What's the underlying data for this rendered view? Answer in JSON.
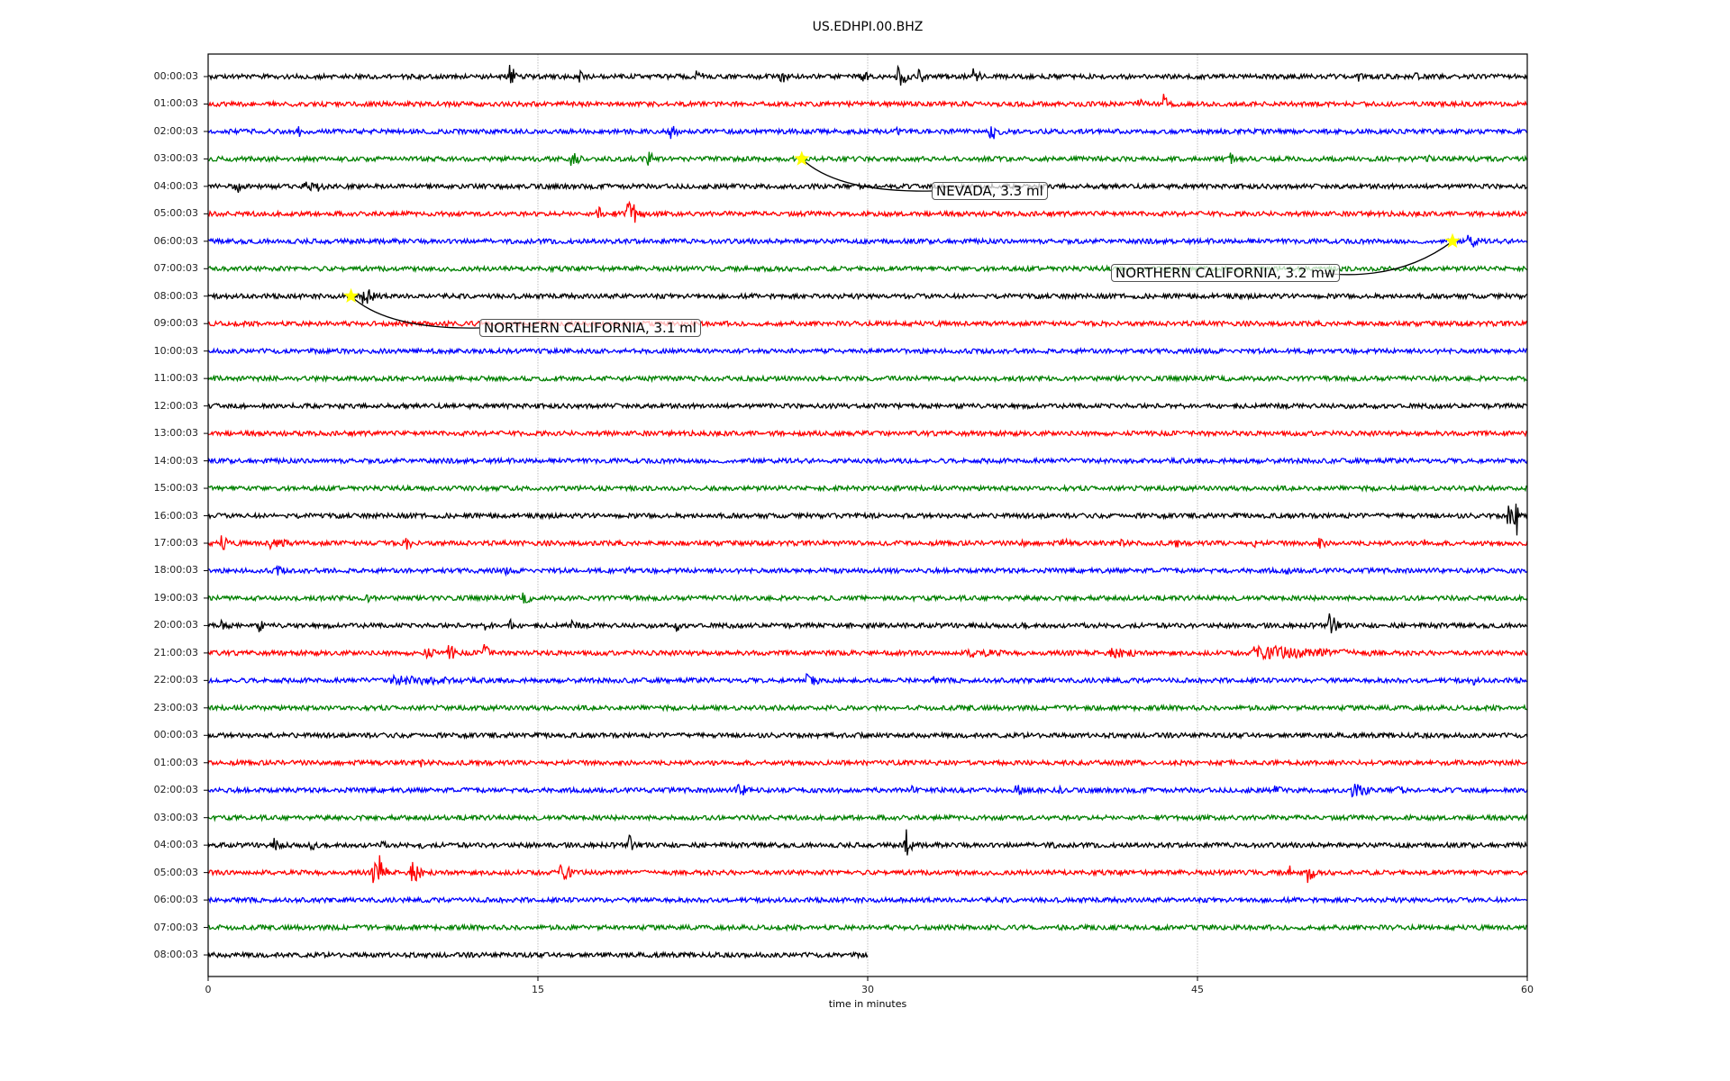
{
  "chart_data": {
    "type": "line",
    "title": "US.EDHPI.00.BHZ",
    "xlabel": "time in minutes",
    "ylabel": "",
    "xlim": [
      0,
      60
    ],
    "xticks": [
      "0",
      "15",
      "30",
      "45",
      "60"
    ],
    "grid": "vertical dotted at 15, 30, 45",
    "colors": [
      "#000000",
      "#ff0000",
      "#0000ff",
      "#008000"
    ],
    "rows": [
      {
        "label": "00:00:03",
        "events": [
          [
            13.7,
            14,
            0.2
          ],
          [
            16.8,
            10,
            0.1
          ],
          [
            22.2,
            8,
            0.3
          ],
          [
            26,
            10,
            0.3
          ],
          [
            29.7,
            8,
            0.3
          ],
          [
            31.3,
            16,
            0.4
          ],
          [
            32.3,
            10,
            0.2
          ],
          [
            34.8,
            10,
            0.3
          ],
          [
            52.3,
            7,
            0.2
          ],
          [
            54.8,
            7,
            0.2
          ]
        ]
      },
      {
        "label": "01:00:03",
        "events": [
          [
            42.3,
            6,
            0.5
          ],
          [
            43.4,
            14,
            0.1
          ]
        ]
      },
      {
        "label": "02:00:03",
        "events": [
          [
            4.1,
            8,
            0.2
          ],
          [
            21,
            9,
            0.3
          ],
          [
            31.3,
            6,
            0.2
          ],
          [
            35.5,
            12,
            0.6
          ]
        ]
      },
      {
        "label": "03:00:03",
        "events": [
          [
            16.5,
            9,
            0.5
          ],
          [
            20,
            10,
            0.2
          ],
          [
            46.5,
            7,
            0.2
          ],
          [
            55.5,
            6,
            0.3
          ]
        ]
      },
      {
        "label": "04:00:03",
        "events": [
          [
            1.2,
            10,
            0.3
          ],
          [
            4.3,
            8,
            0.6
          ],
          [
            5,
            8,
            0.2
          ]
        ]
      },
      {
        "label": "05:00:03",
        "events": [
          [
            17.7,
            8,
            1
          ],
          [
            19,
            20,
            0.6
          ]
        ]
      },
      {
        "label": "06:00:03",
        "events": [
          [
            57.3,
            10,
            0.5
          ]
        ]
      },
      {
        "label": "07:00:03",
        "events": [
          [
            38.7,
            4,
            0.5
          ]
        ]
      },
      {
        "label": "08:00:03",
        "events": [
          [
            7,
            12,
            0.8
          ]
        ]
      },
      {
        "label": "09:00:03",
        "events": []
      },
      {
        "label": "10:00:03",
        "events": []
      },
      {
        "label": "11:00:03",
        "events": []
      },
      {
        "label": "12:00:03",
        "events": []
      },
      {
        "label": "13:00:03",
        "events": []
      },
      {
        "label": "14:00:03",
        "events": []
      },
      {
        "label": "15:00:03",
        "events": []
      },
      {
        "label": "16:00:03",
        "events": [
          [
            59.1,
            14,
            0.3
          ],
          [
            59.4,
            35,
            0.05
          ]
        ]
      },
      {
        "label": "17:00:03",
        "events": [
          [
            0.6,
            10,
            0.3
          ],
          [
            2.8,
            8,
            1.2
          ],
          [
            9,
            8,
            0.3
          ],
          [
            37,
            6,
            0.3
          ],
          [
            38.8,
            6,
            0.6
          ],
          [
            41.5,
            6,
            0.3
          ],
          [
            44,
            6,
            0.2
          ],
          [
            47.5,
            6,
            0.3
          ],
          [
            50.5,
            8,
            0.3
          ],
          [
            55.3,
            7,
            0.2
          ]
        ]
      },
      {
        "label": "18:00:03",
        "events": [
          [
            3.1,
            8,
            0.3
          ],
          [
            13.5,
            5,
            0.3
          ],
          [
            19,
            6,
            0.3
          ],
          [
            49,
            6,
            0.2
          ]
        ]
      },
      {
        "label": "19:00:03",
        "events": [
          [
            7.2,
            6,
            0.4
          ],
          [
            14.3,
            7,
            0.5
          ]
        ]
      },
      {
        "label": "20:00:03",
        "events": [
          [
            0.6,
            6,
            0.5
          ],
          [
            2.3,
            8,
            0.1
          ],
          [
            12.5,
            6,
            0.8
          ],
          [
            13.7,
            8,
            0.2
          ],
          [
            16.5,
            6,
            0.6
          ],
          [
            21.3,
            7,
            0.2
          ],
          [
            37,
            6,
            0.1
          ],
          [
            51,
            14,
            0.3
          ]
        ]
      },
      {
        "label": "21:00:03",
        "events": [
          [
            9.8,
            8,
            0.6
          ],
          [
            10.9,
            12,
            0.3
          ],
          [
            12.5,
            12,
            0.3
          ],
          [
            34.5,
            6,
            3
          ],
          [
            41,
            6,
            2.5
          ],
          [
            47.5,
            8,
            9
          ],
          [
            48.5,
            9,
            0.5
          ]
        ]
      },
      {
        "label": "22:00:03",
        "events": [
          [
            8.3,
            6,
            6.7
          ],
          [
            27.2,
            8,
            0.8
          ],
          [
            33,
            5,
            0.2
          ],
          [
            57.5,
            6,
            0.3
          ]
        ]
      },
      {
        "label": "23:00:03",
        "events": [
          [
            34.5,
            4,
            1
          ]
        ]
      },
      {
        "label": "00:00:03",
        "events": []
      },
      {
        "label": "01:00:03",
        "events": [
          [
            9.6,
            6,
            0.2
          ]
        ]
      },
      {
        "label": "02:00:03",
        "events": [
          [
            24,
            7,
            1.5
          ],
          [
            27,
            6,
            0.2
          ],
          [
            32,
            6,
            0.3
          ],
          [
            36.7,
            7,
            1
          ],
          [
            38.7,
            6,
            0.1
          ],
          [
            48.5,
            6,
            0.4
          ],
          [
            52,
            8,
            1.5
          ],
          [
            54,
            6,
            0.6
          ]
        ]
      },
      {
        "label": "03:00:03",
        "events": []
      },
      {
        "label": "04:00:03",
        "events": [
          [
            3,
            8,
            0.4
          ],
          [
            4.6,
            8,
            0.3
          ],
          [
            7.8,
            6,
            0.3
          ],
          [
            9.6,
            5,
            0.2
          ],
          [
            19.1,
            14,
            0.1
          ],
          [
            31.7,
            26,
            0.1
          ],
          [
            34,
            4,
            0.3
          ],
          [
            38,
            4,
            2.5
          ]
        ]
      },
      {
        "label": "05:00:03",
        "events": [
          [
            7.5,
            12,
            0.6
          ],
          [
            7.8,
            22,
            0.1
          ],
          [
            9.2,
            14,
            0.5
          ],
          [
            16,
            12,
            0.6
          ],
          [
            49.2,
            8,
            0.2
          ],
          [
            50,
            12,
            0.2
          ]
        ]
      },
      {
        "label": "06:00:03",
        "events": []
      },
      {
        "label": "07:00:03",
        "events": []
      },
      {
        "label": "08:00:03",
        "events": [],
        "end": 30
      }
    ],
    "annotations": [
      {
        "text": "NEVADA, 3.3 ml",
        "row": 3,
        "time": 27.0,
        "color": "#ffffff"
      },
      {
        "text": "NORTHERN CALIFORNIA, 3.2 mw",
        "row": 6,
        "time": 56.6,
        "color": "#ffffff"
      },
      {
        "text": "NORTHERN CALIFORNIA, 3.1 ml",
        "row": 8,
        "time": 6.5,
        "color": "#ffffff"
      }
    ],
    "marker_color": "#ffff00"
  }
}
